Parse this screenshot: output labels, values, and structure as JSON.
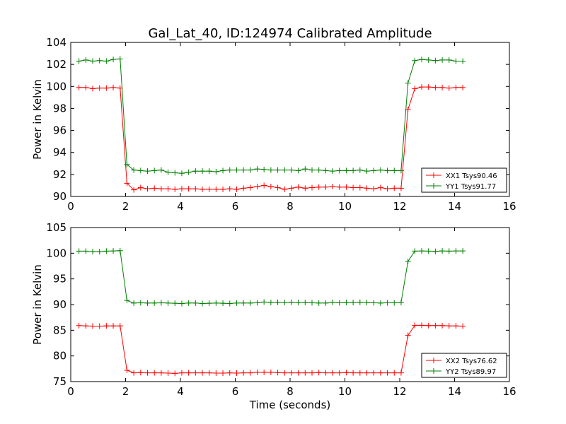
{
  "figure_title": "Gal_Lat_40, ID:124974 Calibrated Amplitude",
  "chart_data": [
    {
      "type": "line",
      "title": "Gal_Lat_40, ID:124974 Calibrated Amplitude",
      "xlabel": "",
      "ylabel": "Power in Kelvin",
      "xlim": [
        0,
        16
      ],
      "ylim": [
        90,
        104
      ],
      "xticks": [
        "0",
        "2",
        "4",
        "6",
        "8",
        "10",
        "12",
        "14",
        "16"
      ],
      "yticks": [
        "90",
        "92",
        "94",
        "96",
        "98",
        "100",
        "102",
        "104"
      ],
      "grid": false,
      "legend_position": "lower-right",
      "x": [
        0.3,
        0.55,
        0.8,
        1.05,
        1.3,
        1.55,
        1.8,
        2.05,
        2.3,
        2.55,
        2.8,
        3.05,
        3.3,
        3.55,
        3.8,
        4.05,
        4.3,
        4.55,
        4.8,
        5.05,
        5.3,
        5.55,
        5.8,
        6.05,
        6.3,
        6.55,
        6.8,
        7.05,
        7.3,
        7.55,
        7.8,
        8.05,
        8.3,
        8.55,
        8.8,
        9.05,
        9.3,
        9.55,
        9.8,
        10.05,
        10.3,
        10.55,
        10.8,
        11.05,
        11.3,
        11.55,
        11.8,
        12.05,
        12.3,
        12.55,
        12.8,
        13.05,
        13.3,
        13.55,
        13.8,
        14.05,
        14.3
      ],
      "series": [
        {
          "name": "XX1 Tsys90.46",
          "color": "#ff0000",
          "values": [
            99.9,
            99.9,
            99.8,
            99.85,
            99.85,
            99.9,
            99.85,
            91.2,
            90.6,
            90.8,
            90.7,
            90.75,
            90.7,
            90.7,
            90.65,
            90.7,
            90.7,
            90.7,
            90.65,
            90.65,
            90.65,
            90.65,
            90.7,
            90.65,
            90.75,
            90.8,
            90.9,
            91.0,
            90.9,
            90.8,
            90.65,
            90.75,
            90.85,
            90.75,
            90.8,
            90.85,
            90.85,
            90.9,
            90.85,
            90.85,
            90.8,
            90.8,
            90.75,
            90.7,
            90.8,
            90.7,
            90.75,
            90.75,
            97.9,
            99.8,
            99.95,
            99.95,
            99.9,
            99.9,
            99.85,
            99.9,
            99.9
          ]
        },
        {
          "name": "YY1 Tsys91.77",
          "color": "#008000",
          "values": [
            102.3,
            102.4,
            102.3,
            102.35,
            102.3,
            102.45,
            102.5,
            92.9,
            92.4,
            92.35,
            92.3,
            92.35,
            92.4,
            92.2,
            92.15,
            92.1,
            92.2,
            92.3,
            92.3,
            92.3,
            92.25,
            92.35,
            92.4,
            92.4,
            92.4,
            92.4,
            92.5,
            92.45,
            92.4,
            92.4,
            92.4,
            92.4,
            92.35,
            92.5,
            92.4,
            92.4,
            92.35,
            92.3,
            92.35,
            92.35,
            92.35,
            92.4,
            92.3,
            92.35,
            92.4,
            92.35,
            92.35,
            92.35,
            100.3,
            102.35,
            102.45,
            102.4,
            102.35,
            102.4,
            102.4,
            102.3,
            102.3
          ]
        }
      ]
    },
    {
      "type": "line",
      "title": "",
      "xlabel": "Time (seconds)",
      "ylabel": "Power in Kelvin",
      "xlim": [
        0,
        16
      ],
      "ylim": [
        75,
        105
      ],
      "xticks": [
        "0",
        "2",
        "4",
        "6",
        "8",
        "10",
        "12",
        "14",
        "16"
      ],
      "yticks": [
        "75",
        "80",
        "85",
        "90",
        "95",
        "100",
        "105"
      ],
      "grid": false,
      "legend_position": "lower-right",
      "x": [
        0.3,
        0.55,
        0.8,
        1.05,
        1.3,
        1.55,
        1.8,
        2.05,
        2.3,
        2.55,
        2.8,
        3.05,
        3.3,
        3.55,
        3.8,
        4.05,
        4.3,
        4.55,
        4.8,
        5.05,
        5.3,
        5.55,
        5.8,
        6.05,
        6.3,
        6.55,
        6.8,
        7.05,
        7.3,
        7.55,
        7.8,
        8.05,
        8.3,
        8.55,
        8.8,
        9.05,
        9.3,
        9.55,
        9.8,
        10.05,
        10.3,
        10.55,
        10.8,
        11.05,
        11.3,
        11.55,
        11.8,
        12.05,
        12.3,
        12.55,
        12.8,
        13.05,
        13.3,
        13.55,
        13.8,
        14.05,
        14.3
      ],
      "series": [
        {
          "name": "XX2 Tsys76.62",
          "color": "#ff0000",
          "values": [
            85.9,
            85.85,
            85.8,
            85.8,
            85.85,
            85.85,
            85.85,
            77.2,
            76.7,
            76.75,
            76.7,
            76.7,
            76.7,
            76.65,
            76.6,
            76.7,
            76.7,
            76.7,
            76.7,
            76.7,
            76.65,
            76.65,
            76.7,
            76.65,
            76.7,
            76.7,
            76.8,
            76.8,
            76.8,
            76.75,
            76.7,
            76.7,
            76.7,
            76.7,
            76.7,
            76.75,
            76.7,
            76.7,
            76.7,
            76.75,
            76.7,
            76.7,
            76.7,
            76.7,
            76.7,
            76.7,
            76.7,
            76.7,
            84.0,
            85.95,
            85.95,
            85.9,
            85.9,
            85.9,
            85.85,
            85.85,
            85.8
          ]
        },
        {
          "name": "YY2 Tsys89.97",
          "color": "#008000",
          "values": [
            100.4,
            100.4,
            100.3,
            100.3,
            100.4,
            100.45,
            100.5,
            90.8,
            90.3,
            90.35,
            90.3,
            90.3,
            90.35,
            90.3,
            90.25,
            90.2,
            90.3,
            90.3,
            90.2,
            90.25,
            90.3,
            90.25,
            90.2,
            90.3,
            90.3,
            90.3,
            90.35,
            90.5,
            90.4,
            90.45,
            90.4,
            90.45,
            90.4,
            90.4,
            90.35,
            90.3,
            90.3,
            90.45,
            90.35,
            90.4,
            90.4,
            90.45,
            90.4,
            90.35,
            90.3,
            90.35,
            90.35,
            90.4,
            98.4,
            100.4,
            100.45,
            100.4,
            100.35,
            100.45,
            100.4,
            100.45,
            100.45
          ]
        }
      ]
    }
  ]
}
